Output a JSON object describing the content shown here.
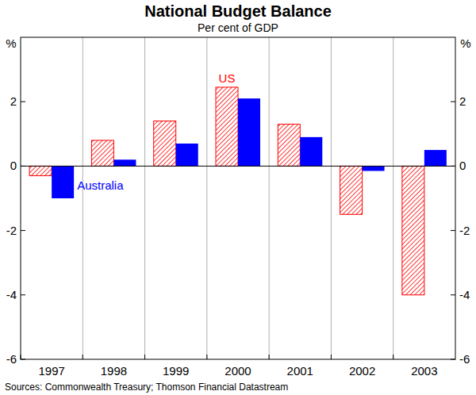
{
  "chart_data": {
    "type": "bar",
    "title": "National Budget Balance",
    "subtitle": "Per cent of GDP",
    "y_label": "%",
    "source": "Sources: Commonwealth Treasury; Thomson Financial Datastream",
    "categories": [
      "1997",
      "1998",
      "1999",
      "2000",
      "2001",
      "2002",
      "2003"
    ],
    "series": [
      {
        "name": "US",
        "color": "#ff0000",
        "values": [
          -0.3,
          0.8,
          1.4,
          2.45,
          1.3,
          -1.5,
          -4.0
        ]
      },
      {
        "name": "Australia",
        "color": "#0000ff",
        "values": [
          -1.0,
          0.2,
          0.7,
          2.1,
          0.9,
          -0.15,
          0.5
        ]
      }
    ],
    "ylim": [
      -6,
      4
    ],
    "yticks": [
      -6,
      -4,
      -2,
      0,
      2
    ],
    "grid": false
  }
}
